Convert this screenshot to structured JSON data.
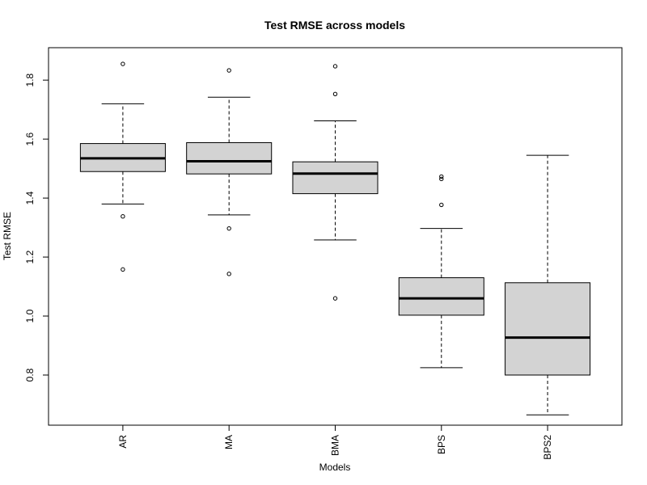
{
  "chart_data": {
    "type": "boxplot",
    "title": "Test RMSE across models",
    "xlabel": "Models",
    "ylabel": "Test RMSE",
    "ylim": [
      0.63,
      1.91
    ],
    "yticks": [
      0.8,
      1.0,
      1.2,
      1.4,
      1.6,
      1.8
    ],
    "ytick_labels": [
      "0.8",
      "1.0",
      "1.2",
      "1.4",
      "1.6",
      "1.8"
    ],
    "box_fill": "#d3d3d3",
    "series": [
      {
        "name": "AR",
        "whisker_low": 1.38,
        "q1": 1.49,
        "median": 1.535,
        "q3": 1.585,
        "whisker_high": 1.72,
        "outliers": [
          1.855,
          1.338,
          1.158
        ]
      },
      {
        "name": "MA",
        "whisker_low": 1.343,
        "q1": 1.482,
        "median": 1.525,
        "q3": 1.588,
        "whisker_high": 1.742,
        "outliers": [
          1.833,
          1.297,
          1.143
        ]
      },
      {
        "name": "BMA",
        "whisker_low": 1.258,
        "q1": 1.415,
        "median": 1.483,
        "q3": 1.523,
        "whisker_high": 1.662,
        "outliers": [
          1.847,
          1.753,
          1.06
        ]
      },
      {
        "name": "BPS",
        "whisker_low": 0.825,
        "q1": 1.003,
        "median": 1.06,
        "q3": 1.13,
        "whisker_high": 1.297,
        "outliers": [
          1.473,
          1.465,
          1.377
        ]
      },
      {
        "name": "BPS2",
        "whisker_low": 0.665,
        "q1": 0.8,
        "median": 0.927,
        "q3": 1.113,
        "whisker_high": 1.545,
        "outliers": []
      }
    ]
  }
}
